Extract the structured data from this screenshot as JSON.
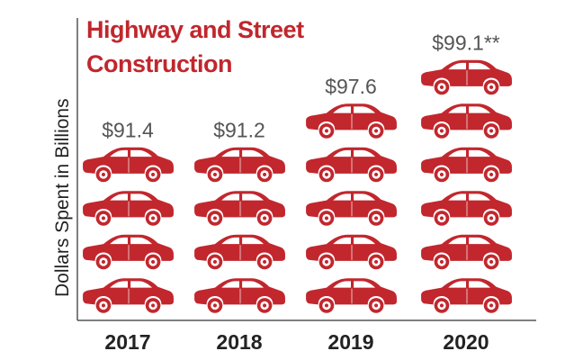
{
  "chart_data": {
    "type": "bar",
    "title_lines": [
      "Highway and Street",
      "Construction"
    ],
    "ylabel": "Dollars Spent in Billions",
    "categories": [
      "2017",
      "2018",
      "2019",
      "2020"
    ],
    "values": [
      91.4,
      91.2,
      97.6,
      99.1
    ],
    "value_labels": [
      "$91.4",
      "$91.2",
      "$97.6",
      "$99.1**"
    ],
    "icon_counts": [
      4,
      4,
      5,
      6
    ],
    "icon": "car-icon",
    "colors": {
      "car": "#c1272d",
      "title": "#c0272d",
      "axis": "#555555",
      "text": "#222222",
      "value_text": "#555555"
    }
  }
}
